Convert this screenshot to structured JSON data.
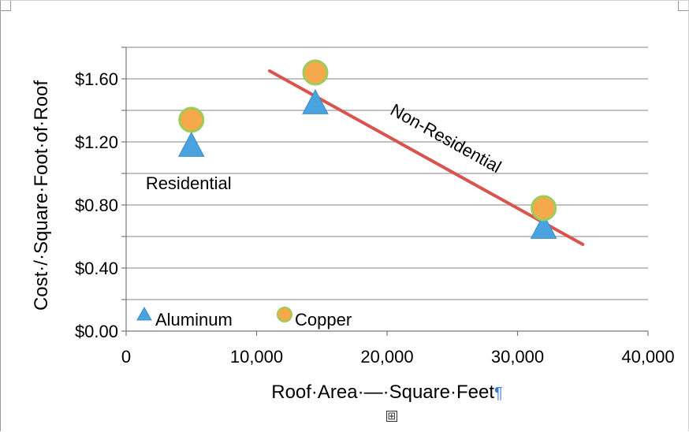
{
  "chart_data": {
    "type": "scatter",
    "xlabel": "Roof·Area·—·Square·Feet",
    "xlabel_pilcrow": "¶",
    "ylabel": "Cost·/·Square·Foot·of·Roof",
    "xlim": [
      0,
      40000
    ],
    "ylim": [
      0,
      1.8
    ],
    "x_ticks": [
      0,
      10000,
      20000,
      30000,
      40000
    ],
    "x_tick_labels": [
      "0",
      "10,000",
      "20,000",
      "30,000",
      "40,000"
    ],
    "y_ticks": [
      0,
      0.4,
      0.8,
      1.2,
      1.6
    ],
    "y_tick_labels": [
      "$0.00",
      "$0.40",
      "$0.80",
      "$1.20",
      "$1.60"
    ],
    "grid": true,
    "series": [
      {
        "name": "Aluminum",
        "marker": "triangle",
        "color": "#4aa3df",
        "points": [
          {
            "x": 5000,
            "y": 1.18
          },
          {
            "x": 14500,
            "y": 1.45
          },
          {
            "x": 32000,
            "y": 0.66
          }
        ]
      },
      {
        "name": "Copper",
        "marker": "circle",
        "color": "#f6a94a",
        "points": [
          {
            "x": 5000,
            "y": 1.34
          },
          {
            "x": 14500,
            "y": 1.64
          },
          {
            "x": 32000,
            "y": 0.78
          }
        ]
      }
    ],
    "trend_line": {
      "color": "#d9534f",
      "from": {
        "x": 11000,
        "y": 1.65
      },
      "to": {
        "x": 35000,
        "y": 0.55
      },
      "label": "Non-Residential"
    },
    "annotations": [
      {
        "text": "Residential",
        "x": 1500,
        "y": 0.9
      }
    ],
    "legend": {
      "position": "bottom-left",
      "items": [
        {
          "label": "Aluminum",
          "marker": "triangle",
          "color": "#4aa3df"
        },
        {
          "label": "Copper",
          "marker": "circle",
          "color": "#f6a94a"
        }
      ]
    }
  }
}
